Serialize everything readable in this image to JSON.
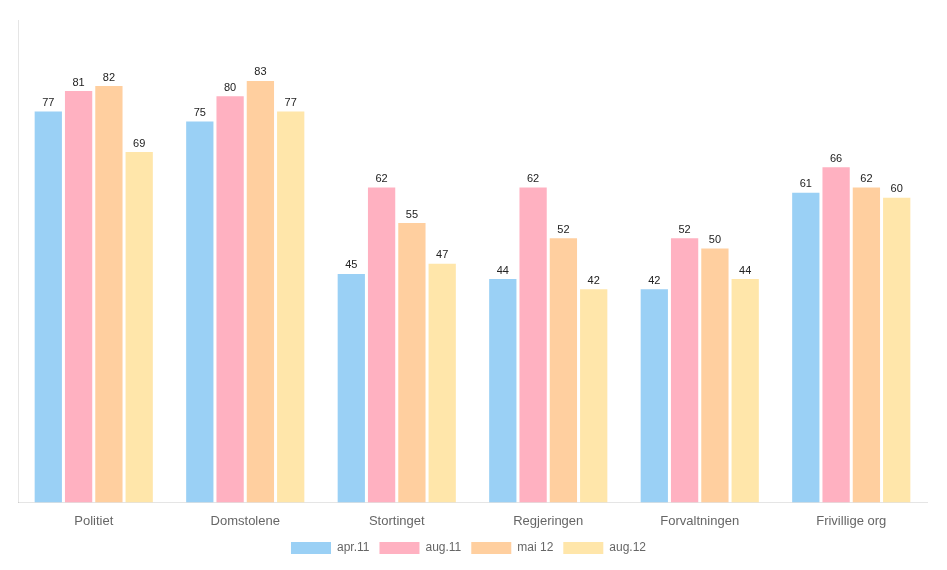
{
  "chart_data": {
    "type": "bar",
    "categories": [
      "Politiet",
      "Domstolene",
      "Stortinget",
      "Regjeringen",
      "Forvaltningen",
      "Frivillige org"
    ],
    "series": [
      {
        "name": "apr.11",
        "values": [
          77,
          75,
          45,
          44,
          42,
          61
        ]
      },
      {
        "name": "aug.11",
        "values": [
          81,
          80,
          62,
          62,
          52,
          66
        ]
      },
      {
        "name": "mai 12",
        "values": [
          82,
          83,
          55,
          52,
          50,
          62
        ]
      },
      {
        "name": "aug.12",
        "values": [
          69,
          77,
          47,
          42,
          44,
          60
        ]
      }
    ],
    "ylim": [
      0,
      95
    ],
    "grid": false,
    "legend": "bottom",
    "data_labels": true,
    "tick_labels": "x"
  }
}
